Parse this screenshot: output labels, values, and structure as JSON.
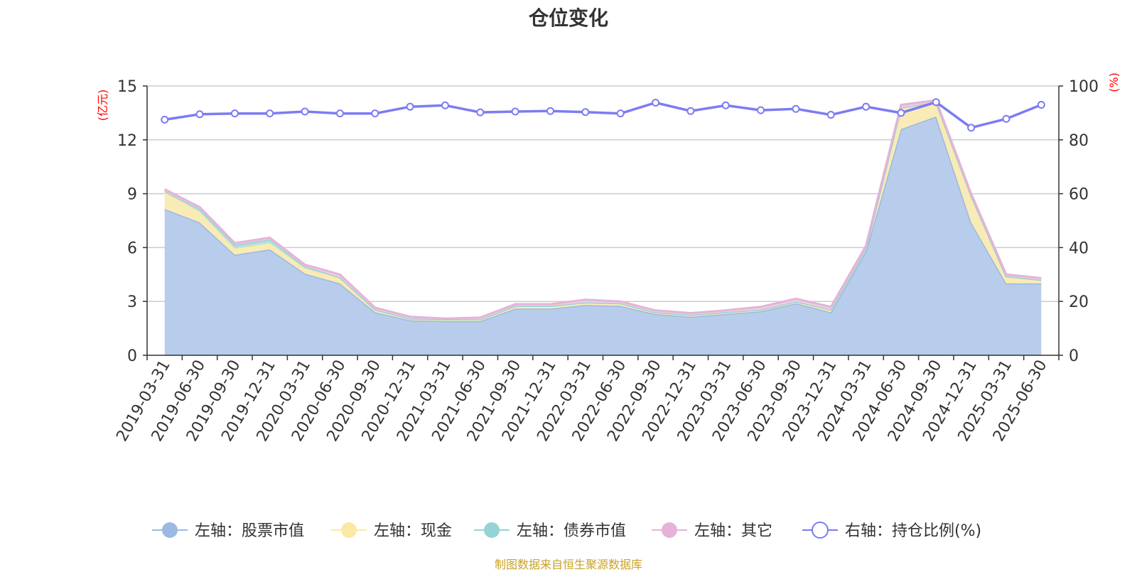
{
  "title": "仓位变化",
  "source": "制图数据来自恒生聚源数据库",
  "chart_data": {
    "type": "area",
    "categories": [
      "2019-03-31",
      "2019-06-30",
      "2019-09-30",
      "2019-12-31",
      "2020-03-31",
      "2020-06-30",
      "2020-09-30",
      "2020-12-31",
      "2021-03-31",
      "2021-06-30",
      "2021-09-30",
      "2021-12-31",
      "2022-03-31",
      "2022-06-30",
      "2022-09-30",
      "2022-12-31",
      "2023-03-31",
      "2023-06-30",
      "2023-09-30",
      "2023-12-31",
      "2024-03-31",
      "2024-06-30",
      "2024-09-30",
      "2024-12-31",
      "2025-03-31",
      "2025-06-30"
    ],
    "left_axis": {
      "unit": "(亿元)",
      "ylim": [
        0,
        15
      ],
      "ticks": [
        0,
        3,
        6,
        9,
        12,
        15
      ]
    },
    "right_axis": {
      "unit": "(%)",
      "ylim": [
        0,
        100
      ],
      "ticks": [
        0,
        20,
        40,
        60,
        80,
        100
      ]
    },
    "series": [
      {
        "name": "左轴：股票市值",
        "axis": "left",
        "stack": true,
        "color": "#9db8e2",
        "fill": "#b8cdeb",
        "values": [
          8.15,
          7.4,
          5.6,
          5.9,
          4.55,
          4.0,
          2.4,
          1.95,
          1.9,
          1.9,
          2.6,
          2.6,
          2.8,
          2.75,
          2.3,
          2.15,
          2.3,
          2.45,
          2.9,
          2.4,
          5.8,
          12.6,
          13.3,
          7.4,
          4.0,
          4.0
        ]
      },
      {
        "name": "左轴：现金",
        "axis": "left",
        "stack": true,
        "color": "#fae8a4",
        "fill": "#f9ebb5",
        "values": [
          0.95,
          0.6,
          0.35,
          0.35,
          0.3,
          0.3,
          0.15,
          0.1,
          0.1,
          0.1,
          0.15,
          0.15,
          0.15,
          0.15,
          0.1,
          0.1,
          0.1,
          0.1,
          0.1,
          0.15,
          0.15,
          1.2,
          0.8,
          1.5,
          0.4,
          0.2
        ]
      },
      {
        "name": "左轴：债券市值",
        "axis": "left",
        "stack": true,
        "color": "#96d3d4",
        "fill": "#b5e0e0",
        "values": [
          0.05,
          0.15,
          0.2,
          0.2,
          0.1,
          0.05,
          0,
          0,
          0,
          0,
          0,
          0,
          0,
          0,
          0,
          0,
          0,
          0,
          0,
          0,
          0,
          0,
          0,
          0,
          0,
          0
        ]
      },
      {
        "name": "左轴：其它",
        "axis": "left",
        "stack": true,
        "color": "#e5b3d8",
        "fill": "#f0cfe6",
        "values": [
          0.1,
          0.1,
          0.1,
          0.1,
          0.1,
          0.15,
          0.1,
          0.1,
          0.05,
          0.1,
          0.1,
          0.1,
          0.15,
          0.1,
          0.1,
          0.1,
          0.1,
          0.15,
          0.15,
          0.15,
          0.15,
          0.15,
          0.1,
          0.1,
          0.1,
          0.1
        ]
      },
      {
        "name": "右轴：持仓比例(%)",
        "axis": "right",
        "type": "line",
        "color": "#7b7cf2",
        "values": [
          87.5,
          89.5,
          89.8,
          89.8,
          90.5,
          89.8,
          89.8,
          92.3,
          92.8,
          90.2,
          90.5,
          90.7,
          90.3,
          89.8,
          93.8,
          90.7,
          92.8,
          91.0,
          91.5,
          89.3,
          92.3,
          90.0,
          94.0,
          84.5,
          87.8,
          93.0
        ]
      }
    ]
  }
}
